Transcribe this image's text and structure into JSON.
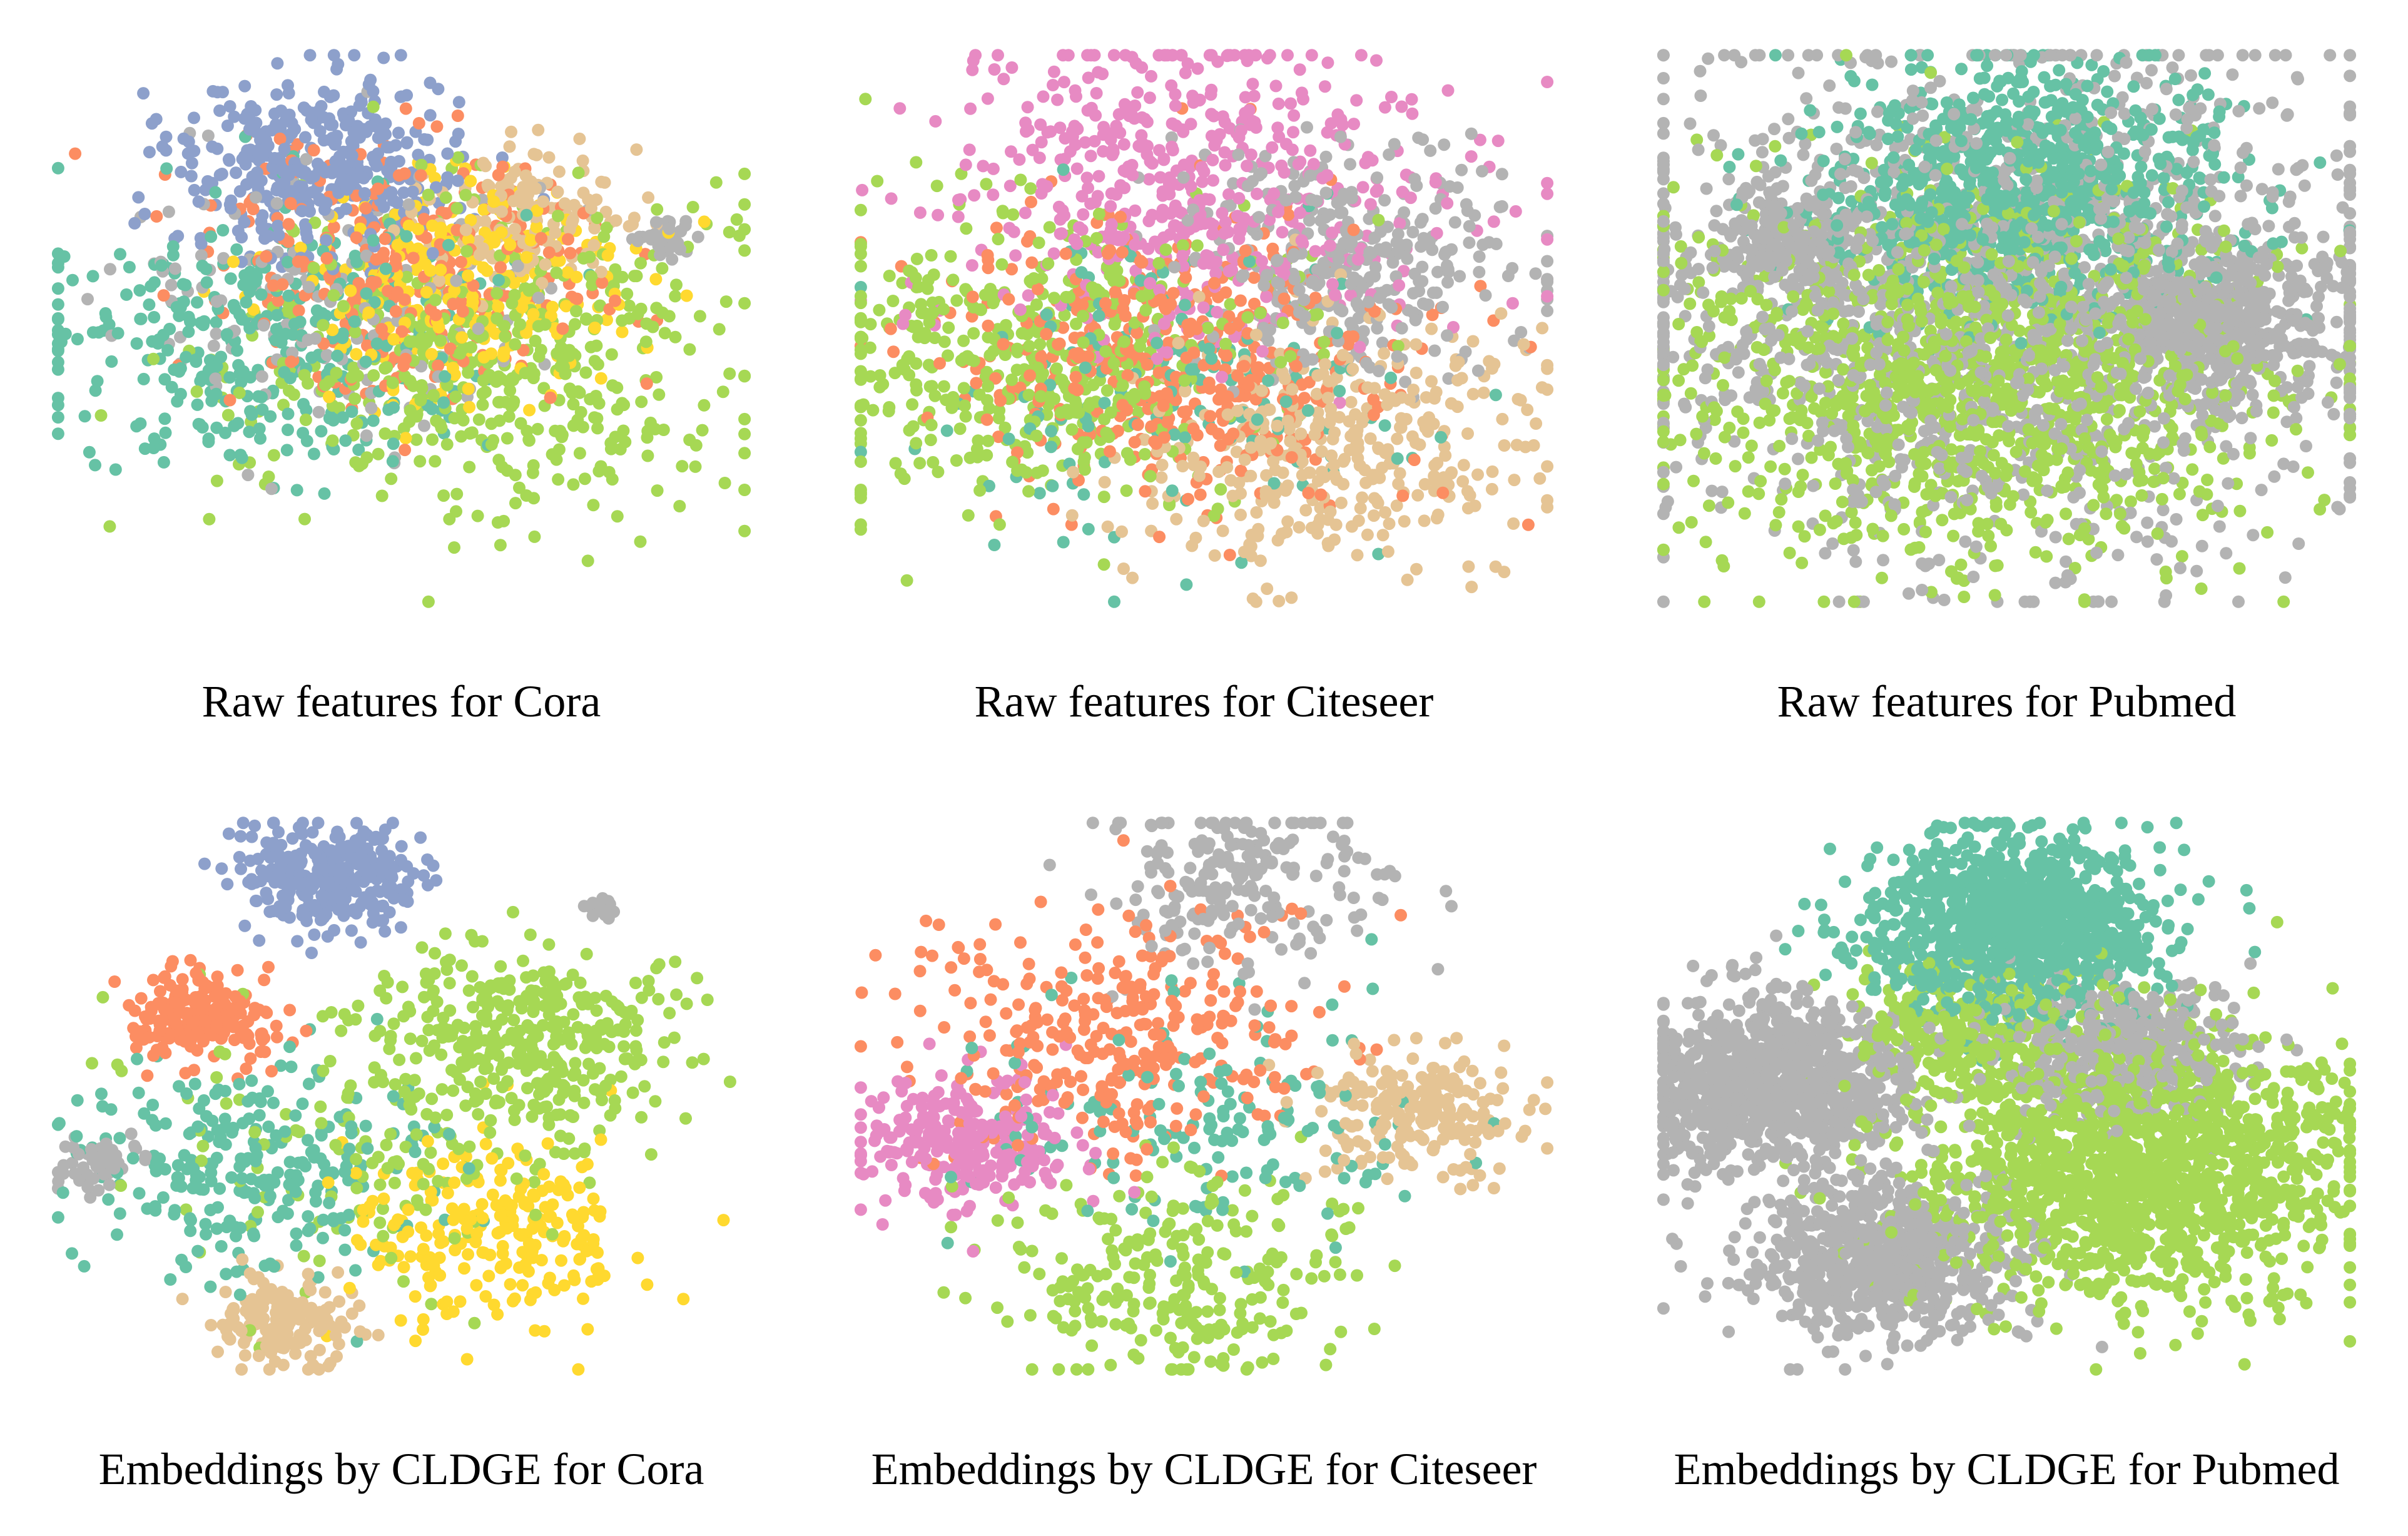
{
  "figure": {
    "palette": {
      "teal": "#66c2a5",
      "orange": "#fc8d62",
      "blue": "#8da0cb",
      "pink": "#e78ac3",
      "green": "#a6d854",
      "yellow": "#ffd92f",
      "tan": "#e5c494",
      "gray": "#b3b3b3"
    }
  },
  "chart_data": [
    {
      "type": "scatter",
      "title": "Raw features for Cora",
      "classes": [
        "teal",
        "orange",
        "blue",
        "green",
        "yellow",
        "tan",
        "gray"
      ],
      "layout": "mixed-ellipse",
      "clusters": [
        {
          "class": "blue",
          "cx": 0.38,
          "cy": 0.22,
          "spread": 0.1,
          "n": 380
        },
        {
          "class": "orange",
          "cx": 0.5,
          "cy": 0.4,
          "spread": 0.14,
          "n": 300
        },
        {
          "class": "yellow",
          "cx": 0.58,
          "cy": 0.43,
          "spread": 0.12,
          "n": 260
        },
        {
          "class": "tan",
          "cx": 0.68,
          "cy": 0.3,
          "spread": 0.07,
          "n": 140
        },
        {
          "class": "green",
          "cx": 0.62,
          "cy": 0.55,
          "spread": 0.18,
          "n": 500
        },
        {
          "class": "teal",
          "cx": 0.3,
          "cy": 0.52,
          "spread": 0.16,
          "n": 350
        },
        {
          "class": "gray",
          "cx": 0.4,
          "cy": 0.45,
          "spread": 0.15,
          "n": 150
        },
        {
          "class": "gray",
          "cx": 0.87,
          "cy": 0.34,
          "spread": 0.02,
          "n": 40
        }
      ]
    },
    {
      "type": "scatter",
      "title": "Raw features for Citeseer",
      "classes": [
        "teal",
        "orange",
        "pink",
        "green",
        "tan",
        "gray"
      ],
      "layout": "mixed-ellipse",
      "clusters": [
        {
          "class": "pink",
          "cx": 0.5,
          "cy": 0.25,
          "spread": 0.18,
          "n": 550
        },
        {
          "class": "gray",
          "cx": 0.7,
          "cy": 0.38,
          "spread": 0.12,
          "n": 350
        },
        {
          "class": "green",
          "cx": 0.28,
          "cy": 0.55,
          "spread": 0.16,
          "n": 500
        },
        {
          "class": "orange",
          "cx": 0.45,
          "cy": 0.55,
          "spread": 0.16,
          "n": 450
        },
        {
          "class": "tan",
          "cx": 0.68,
          "cy": 0.7,
          "spread": 0.14,
          "n": 380
        },
        {
          "class": "teal",
          "cx": 0.48,
          "cy": 0.62,
          "spread": 0.18,
          "n": 150
        }
      ]
    },
    {
      "type": "scatter",
      "title": "Raw features for Pubmed",
      "classes": [
        "teal",
        "green",
        "gray"
      ],
      "layout": "dense-blobs",
      "clusters": [
        {
          "class": "gray",
          "cx": 0.5,
          "cy": 0.45,
          "spread": 0.28,
          "n": 1500
        },
        {
          "class": "teal",
          "cx": 0.52,
          "cy": 0.25,
          "spread": 0.14,
          "n": 900
        },
        {
          "class": "green",
          "cx": 0.45,
          "cy": 0.58,
          "spread": 0.2,
          "n": 1400
        },
        {
          "class": "gray",
          "cx": 0.78,
          "cy": 0.48,
          "spread": 0.08,
          "n": 500
        },
        {
          "class": "gray",
          "cx": 0.2,
          "cy": 0.35,
          "spread": 0.06,
          "n": 200
        }
      ]
    },
    {
      "type": "scatter",
      "title": "Embeddings by CLDGE for Cora",
      "classes": [
        "teal",
        "orange",
        "blue",
        "green",
        "yellow",
        "tan",
        "gray"
      ],
      "layout": "separated",
      "clusters": [
        {
          "class": "blue",
          "cx": 0.4,
          "cy": 0.12,
          "spread": 0.06,
          "n": 300
        },
        {
          "class": "orange",
          "cx": 0.23,
          "cy": 0.36,
          "spread": 0.05,
          "n": 200
        },
        {
          "class": "green",
          "cx": 0.68,
          "cy": 0.4,
          "spread": 0.1,
          "n": 350
        },
        {
          "class": "teal",
          "cx": 0.28,
          "cy": 0.62,
          "spread": 0.12,
          "n": 260
        },
        {
          "class": "yellow",
          "cx": 0.64,
          "cy": 0.74,
          "spread": 0.1,
          "n": 240
        },
        {
          "class": "tan",
          "cx": 0.33,
          "cy": 0.9,
          "spread": 0.05,
          "n": 150
        },
        {
          "class": "gray",
          "cx": 0.08,
          "cy": 0.62,
          "spread": 0.03,
          "n": 60
        },
        {
          "class": "gray",
          "cx": 0.78,
          "cy": 0.17,
          "spread": 0.01,
          "n": 25
        },
        {
          "class": "green",
          "cx": 0.48,
          "cy": 0.58,
          "spread": 0.15,
          "n": 150
        }
      ]
    },
    {
      "type": "scatter",
      "title": "Embeddings by CLDGE for Citeseer",
      "classes": [
        "teal",
        "orange",
        "pink",
        "green",
        "tan",
        "gray"
      ],
      "layout": "separated",
      "clusters": [
        {
          "class": "gray",
          "cx": 0.55,
          "cy": 0.12,
          "spread": 0.1,
          "n": 220
        },
        {
          "class": "orange",
          "cx": 0.38,
          "cy": 0.4,
          "spread": 0.14,
          "n": 320
        },
        {
          "class": "pink",
          "cx": 0.16,
          "cy": 0.58,
          "spread": 0.08,
          "n": 260
        },
        {
          "class": "tan",
          "cx": 0.8,
          "cy": 0.53,
          "spread": 0.07,
          "n": 220
        },
        {
          "class": "green",
          "cx": 0.46,
          "cy": 0.82,
          "spread": 0.12,
          "n": 260
        },
        {
          "class": "teal",
          "cx": 0.5,
          "cy": 0.55,
          "spread": 0.15,
          "n": 150
        }
      ]
    },
    {
      "type": "scatter",
      "title": "Embeddings by CLDGE for Pubmed",
      "classes": [
        "teal",
        "green",
        "gray"
      ],
      "layout": "three-lobes",
      "clusters": [
        {
          "class": "teal",
          "cx": 0.51,
          "cy": 0.2,
          "spread": 0.1,
          "n": 1100
        },
        {
          "class": "gray",
          "cx": 0.17,
          "cy": 0.48,
          "spread": 0.09,
          "n": 1000
        },
        {
          "class": "gray",
          "cx": 0.33,
          "cy": 0.78,
          "spread": 0.09,
          "n": 700
        },
        {
          "class": "green",
          "cx": 0.68,
          "cy": 0.62,
          "spread": 0.15,
          "n": 1600
        },
        {
          "class": "gray",
          "cx": 0.66,
          "cy": 0.42,
          "spread": 0.08,
          "n": 400
        },
        {
          "class": "green",
          "cx": 0.44,
          "cy": 0.38,
          "spread": 0.08,
          "n": 250
        }
      ]
    }
  ]
}
